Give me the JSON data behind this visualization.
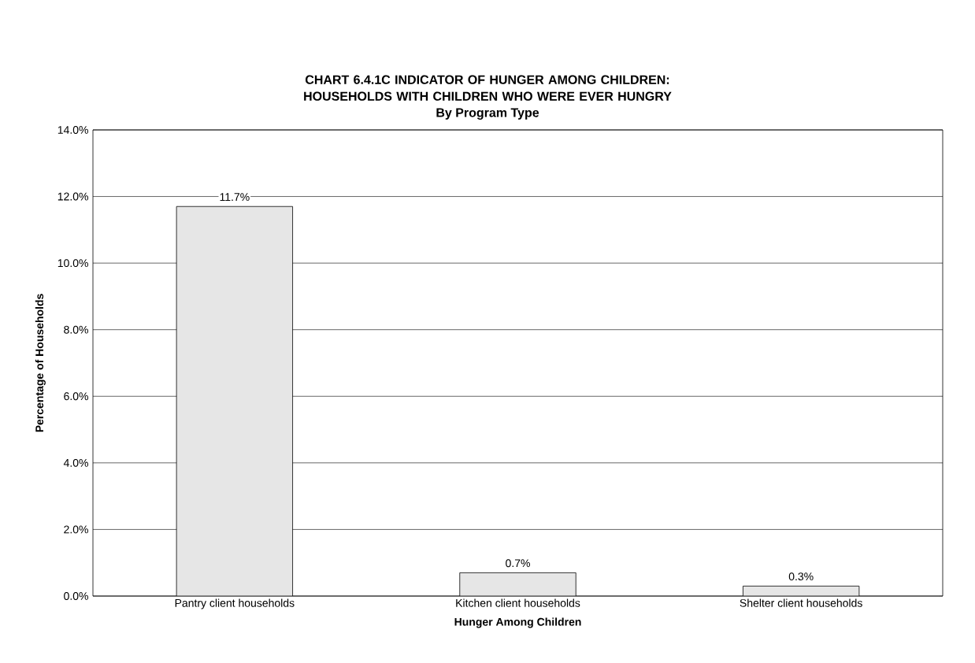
{
  "chart_data": {
    "type": "bar",
    "title": "CHART 6.4.1C      INDICATOR OF HUNGER AMONG CHILDREN:  HOUSEHOLDS WITH CHILDREN WHO WERE EVER HUNGRY",
    "subtitle": "By Program Type",
    "xlabel": "Hunger Among Children",
    "ylabel": "Percentage of Households",
    "categories": [
      "Pantry client households",
      "Kitchen client households",
      "Shelter client households"
    ],
    "values": [
      11.7,
      0.7,
      0.3
    ],
    "value_labels": [
      "11.7%",
      "0.7%",
      "0.3%"
    ],
    "color": "#e6e6e6",
    "ylim": [
      0,
      14
    ],
    "yticks": [
      {
        "value": 0,
        "label": "0.0%"
      },
      {
        "value": 2,
        "label": "2.0%"
      },
      {
        "value": 4,
        "label": "4.0%"
      },
      {
        "value": 6,
        "label": "6.0%"
      },
      {
        "value": 8,
        "label": "8.0%"
      },
      {
        "value": 10,
        "label": "10.0%"
      },
      {
        "value": 12,
        "label": "12.0%"
      },
      {
        "value": 14,
        "label": "14.0%"
      }
    ],
    "grid": "y"
  }
}
